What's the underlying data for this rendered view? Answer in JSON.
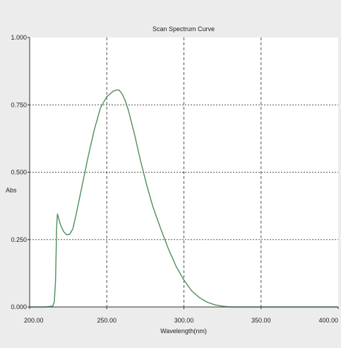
{
  "chart_data": {
    "type": "line",
    "title": "Scan Spectrum Curve",
    "xlabel": "Wavelength(nm)",
    "ylabel": "Abs",
    "xlim": [
      200,
      400
    ],
    "ylim": [
      0,
      1
    ],
    "x_ticks": [
      "200.00",
      "250.00",
      "300.00",
      "350.00",
      "400.00"
    ],
    "y_ticks": [
      "0.000",
      "0.250",
      "0.500",
      "0.750",
      "1.000"
    ],
    "grid": true,
    "colors": {
      "series": "#4f8f5a",
      "grid": "#555555",
      "plot_bg": "#ffffff",
      "frame_bg": "#ececec"
    },
    "series": [
      {
        "x": [
          200,
          210,
          215,
          216,
          216.8,
          217.5,
          218,
          219,
          220,
          222,
          224,
          226,
          228,
          230,
          234,
          238,
          242,
          246,
          250,
          252,
          254,
          256,
          258,
          260,
          262,
          264,
          268,
          272,
          276,
          280,
          285,
          290,
          295,
          300,
          305,
          310,
          315,
          320,
          325,
          328,
          330,
          340,
          360,
          380,
          400
        ],
        "y": [
          0.0,
          0.0,
          0.003,
          0.02,
          0.1,
          0.3,
          0.345,
          0.325,
          0.305,
          0.28,
          0.268,
          0.27,
          0.29,
          0.34,
          0.45,
          0.56,
          0.66,
          0.74,
          0.78,
          0.79,
          0.8,
          0.805,
          0.805,
          0.79,
          0.765,
          0.73,
          0.64,
          0.54,
          0.45,
          0.37,
          0.29,
          0.215,
          0.15,
          0.1,
          0.06,
          0.035,
          0.018,
          0.008,
          0.003,
          0.001,
          0.0,
          0.0,
          0.0,
          0.0,
          0.0
        ]
      }
    ]
  }
}
